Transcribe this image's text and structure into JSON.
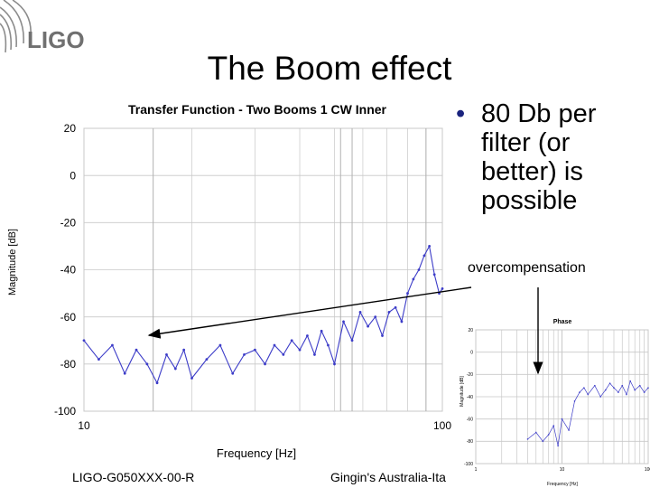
{
  "slide": {
    "title": "The Boom effect",
    "bullet": "80 Db per filter (or better) is possible",
    "bullet_marker": "•",
    "annotation": "overcompensation",
    "footer_left": "LIGO-G050XXX-00-R",
    "footer_mid": "Gingin's Australia-Ita",
    "logo_text": "LIGO"
  },
  "colors": {
    "series": "#3c3cc8",
    "grid": "#c8c8c8",
    "logo": "#707070"
  },
  "chart_data": [
    {
      "type": "line",
      "title": "Transfer Function - Two Booms 1 CW Inner",
      "xlabel": "Frequency [Hz]",
      "ylabel": "Magnitude [dB]",
      "xscale": "log",
      "xlim": [
        10,
        100
      ],
      "ylim": [
        -100,
        20
      ],
      "y_ticks": [
        "20",
        "0",
        "-20",
        "-40",
        "-60",
        "-80",
        "-100"
      ],
      "x_ticks": [
        "10",
        "100"
      ],
      "series": [
        {
          "name": "Magnitude",
          "x": [
            10,
            11,
            12,
            13,
            14,
            15,
            16,
            17,
            18,
            19,
            20,
            22,
            24,
            26,
            28,
            30,
            32,
            34,
            36,
            38,
            40,
            42,
            44,
            46,
            48,
            50,
            53,
            56,
            59,
            62,
            65,
            68,
            71,
            74,
            77,
            80,
            83,
            86,
            89,
            92,
            95,
            98,
            100
          ],
          "y": [
            -70,
            -78,
            -72,
            -84,
            -74,
            -80,
            -88,
            -76,
            -82,
            -74,
            -86,
            -78,
            -72,
            -84,
            -76,
            -74,
            -80,
            -72,
            -76,
            -70,
            -74,
            -68,
            -76,
            -66,
            -72,
            -80,
            -62,
            -70,
            -58,
            -64,
            -60,
            -68,
            -58,
            -56,
            -62,
            -50,
            -44,
            -40,
            -34,
            -30,
            -42,
            -50,
            -48
          ]
        }
      ]
    },
    {
      "type": "line",
      "title": "Phase",
      "xlabel": "Frequency [Hz]",
      "ylabel": "Magnitude [dB]",
      "xscale": "log",
      "xlim": [
        1,
        100
      ],
      "ylim": [
        -100,
        20
      ],
      "y_ticks": [
        "20",
        "0",
        "-20",
        "-40",
        "-60",
        "-80",
        "-100"
      ],
      "x_ticks": [
        "1",
        "10",
        "100"
      ],
      "series": [
        {
          "name": "Phase",
          "x": [
            4,
            5,
            6,
            7,
            8,
            9,
            10,
            12,
            14,
            16,
            18,
            20,
            24,
            28,
            32,
            36,
            40,
            45,
            50,
            56,
            62,
            70,
            80,
            90,
            100
          ],
          "y": [
            -78,
            -72,
            -80,
            -74,
            -66,
            -84,
            -60,
            -70,
            -44,
            -36,
            -32,
            -38,
            -30,
            -40,
            -34,
            -28,
            -32,
            -36,
            -30,
            -38,
            -26,
            -34,
            -30,
            -36,
            -32
          ]
        }
      ]
    }
  ]
}
